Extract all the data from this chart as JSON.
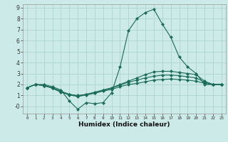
{
  "xlabel": "Humidex (Indice chaleur)",
  "bg_color": "#cceae7",
  "grid_color": "#aed4d0",
  "line_color": "#1a6b5a",
  "xlim": [
    -0.5,
    23.5
  ],
  "ylim": [
    -0.65,
    9.3
  ],
  "xticks": [
    0,
    1,
    2,
    3,
    4,
    5,
    6,
    7,
    8,
    9,
    10,
    11,
    12,
    13,
    14,
    15,
    16,
    17,
    18,
    19,
    20,
    21,
    22,
    23
  ],
  "yticks": [
    0,
    1,
    2,
    3,
    4,
    5,
    6,
    7,
    8,
    9
  ],
  "ytick_labels": [
    "-0",
    "1",
    "2",
    "3",
    "4",
    "5",
    "6",
    "7",
    "8",
    "9"
  ],
  "lines": [
    {
      "x": [
        0,
        1,
        2,
        3,
        4,
        5,
        6,
        7,
        8,
        9,
        10,
        11,
        12,
        13,
        14,
        15,
        16,
        17,
        18,
        19,
        20,
        21,
        22,
        23
      ],
      "y": [
        1.7,
        2.0,
        2.0,
        1.8,
        1.5,
        0.5,
        -0.25,
        0.35,
        0.25,
        0.35,
        1.25,
        3.6,
        6.9,
        8.0,
        8.55,
        8.85,
        7.5,
        6.3,
        4.5,
        3.6,
        3.0,
        2.0,
        2.0,
        2.0
      ]
    },
    {
      "x": [
        0,
        1,
        2,
        3,
        4,
        5,
        6,
        7,
        8,
        9,
        10,
        11,
        12,
        13,
        14,
        15,
        16,
        17,
        18,
        19,
        20,
        21,
        22,
        23
      ],
      "y": [
        1.7,
        2.0,
        1.9,
        1.7,
        1.4,
        1.1,
        1.0,
        1.1,
        1.3,
        1.5,
        1.7,
        2.0,
        2.3,
        2.6,
        2.9,
        3.15,
        3.2,
        3.2,
        3.1,
        3.0,
        2.9,
        2.3,
        2.0,
        2.0
      ]
    },
    {
      "x": [
        0,
        1,
        2,
        3,
        4,
        5,
        6,
        7,
        8,
        9,
        10,
        11,
        12,
        13,
        14,
        15,
        16,
        17,
        18,
        19,
        20,
        21,
        22,
        23
      ],
      "y": [
        1.7,
        2.0,
        1.9,
        1.7,
        1.35,
        1.1,
        0.95,
        1.1,
        1.25,
        1.45,
        1.65,
        1.95,
        2.2,
        2.4,
        2.6,
        2.75,
        2.85,
        2.85,
        2.8,
        2.7,
        2.6,
        2.2,
        2.0,
        2.0
      ]
    },
    {
      "x": [
        0,
        1,
        2,
        3,
        4,
        5,
        6,
        7,
        8,
        9,
        10,
        11,
        12,
        13,
        14,
        15,
        16,
        17,
        18,
        19,
        20,
        21,
        22,
        23
      ],
      "y": [
        1.7,
        2.0,
        1.9,
        1.65,
        1.3,
        1.05,
        0.9,
        1.05,
        1.2,
        1.4,
        1.55,
        1.8,
        2.0,
        2.1,
        2.25,
        2.4,
        2.45,
        2.5,
        2.45,
        2.4,
        2.3,
        2.1,
        2.0,
        2.0
      ]
    }
  ]
}
